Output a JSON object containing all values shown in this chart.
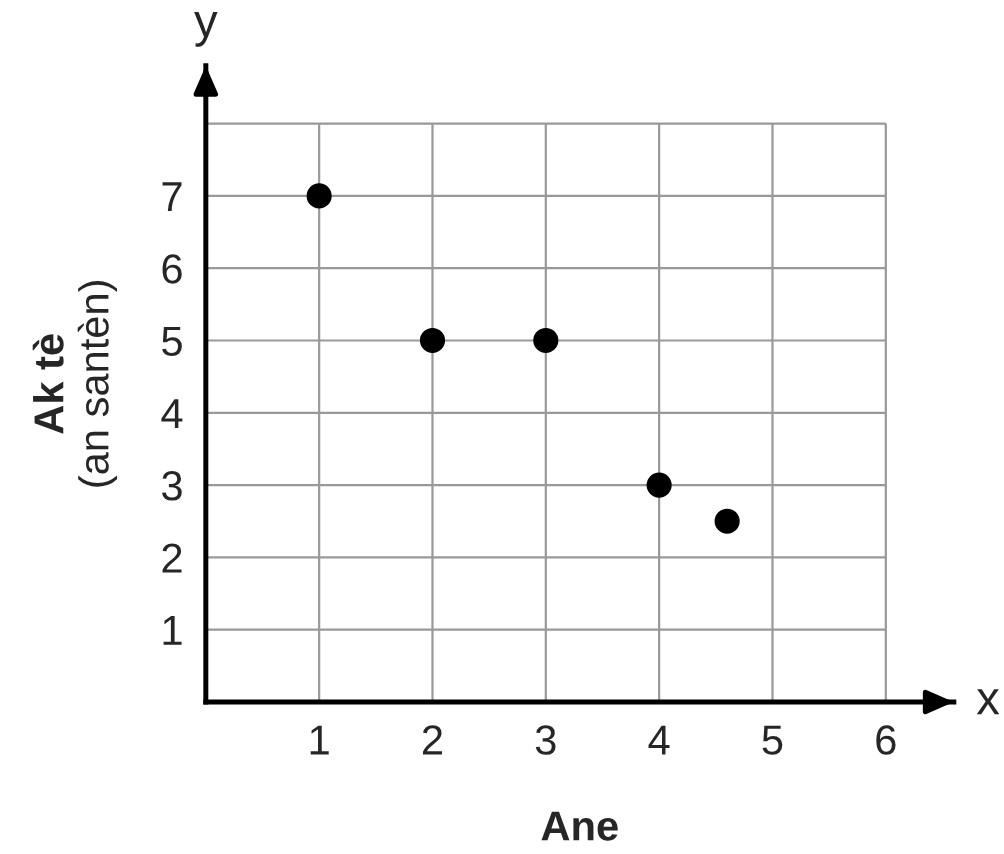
{
  "chart_data": {
    "type": "scatter",
    "xlabel": "Ane",
    "ylabel": "Ak tè\n(an santèn)",
    "annotations": [
      "x",
      "y"
    ],
    "x": [
      1,
      2,
      3,
      4,
      4.6
    ],
    "series": [
      {
        "color": "#000000",
        "values": [
          7,
          5,
          5,
          3,
          2.5
        ]
      }
    ],
    "xlim": [
      0,
      6.6
    ],
    "ylim": [
      0,
      8.8
    ],
    "xticks": [
      1,
      2,
      3,
      4,
      5,
      6
    ],
    "yticks": [
      1,
      2,
      3,
      4,
      5,
      6,
      7,
      {
        "value": 8,
        "label": null
      }
    ],
    "grid": true,
    "marker": "circle"
  }
}
